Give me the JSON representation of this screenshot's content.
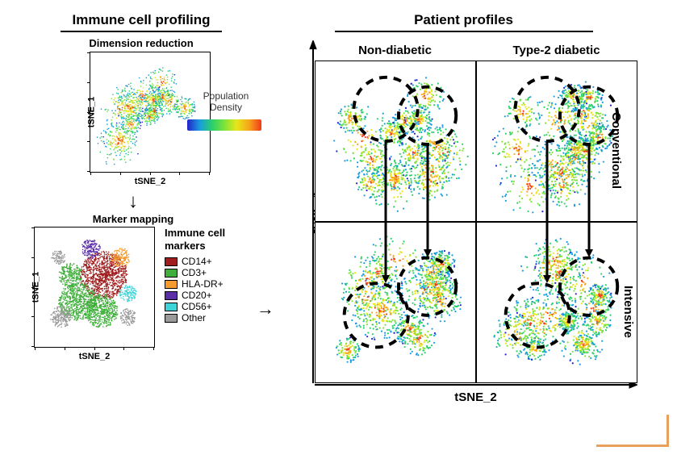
{
  "left": {
    "title": "Immune cell profiling",
    "dim_reduction": "Dimension reduction",
    "marker_mapping": "Marker mapping",
    "axis_y": "tSNE_1",
    "axis_x": "tSNE_2"
  },
  "density": {
    "label": "Population Density",
    "gradient": [
      "#2323c8",
      "#1a9be0",
      "#29d06b",
      "#7de33a",
      "#e6e619",
      "#f7a51a",
      "#f03a1a"
    ]
  },
  "markers": {
    "title": "Immune cell markers",
    "items": [
      {
        "label": "CD14+",
        "color": "#9f1d1d"
      },
      {
        "label": "CD3+",
        "color": "#3fae3a"
      },
      {
        "label": "HLA-DR+",
        "color": "#f59b2e"
      },
      {
        "label": "CD20+",
        "color": "#5a2fa6"
      },
      {
        "label": "CD56+",
        "color": "#3dd4d8"
      },
      {
        "label": "Other",
        "color": "#9a9a9a"
      }
    ]
  },
  "right": {
    "title": "Patient profiles",
    "cols": [
      "Non-diabetic",
      "Type-2 diabetic"
    ],
    "rows": [
      "Conventional",
      "Intensive"
    ],
    "axis_y": "tSNE_1",
    "axis_x": "tSNE_2",
    "cell_size": 200,
    "circle_style": {
      "stroke": "#000000",
      "dash": "5,4",
      "width": 2
    }
  },
  "plot_style": {
    "small_size": 150,
    "background": "#ffffff"
  }
}
